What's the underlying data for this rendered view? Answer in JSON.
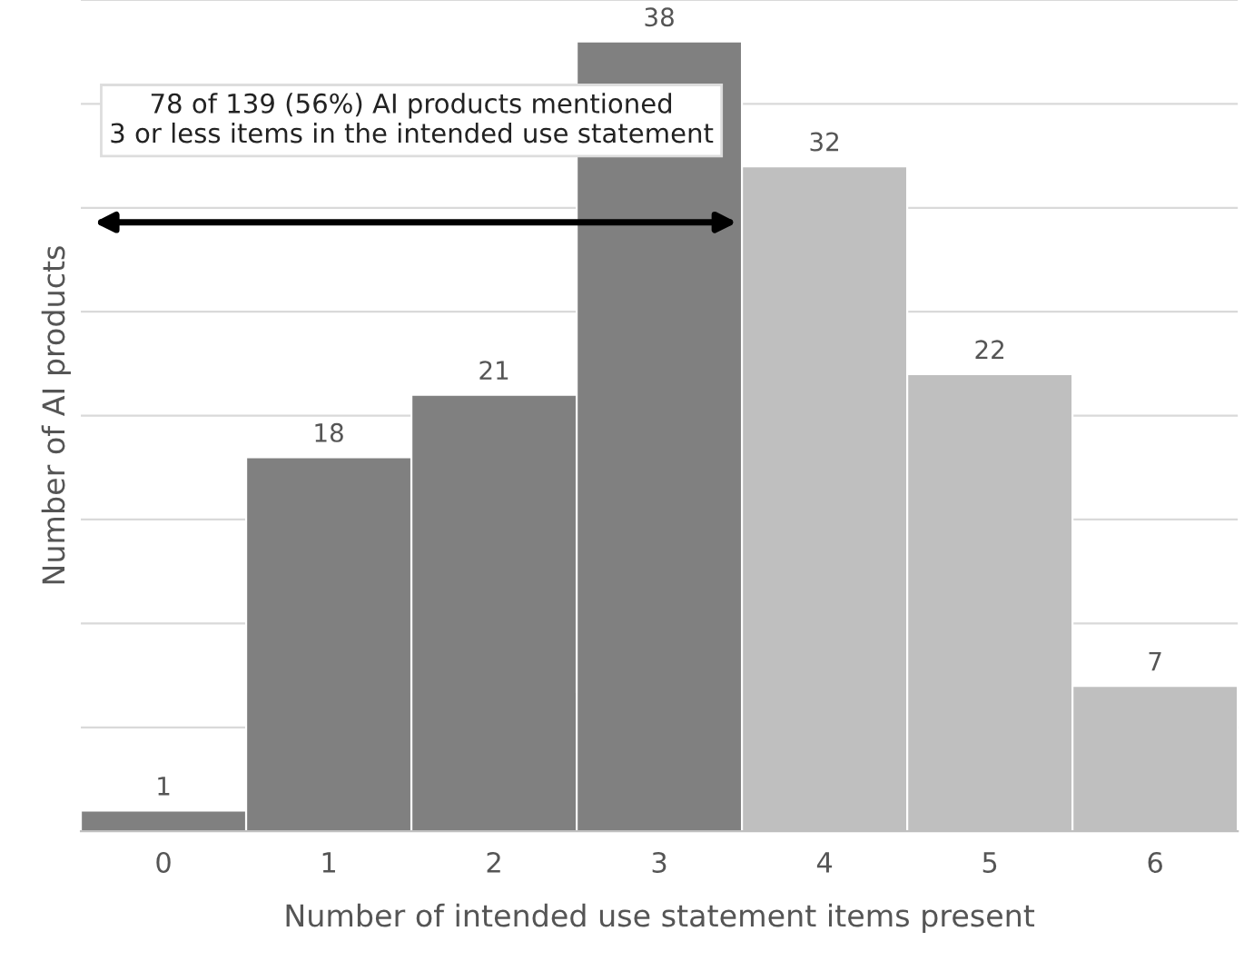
{
  "chart_data": {
    "type": "bar",
    "xlabel": "Number of intended use statement items present",
    "ylabel": "Number of AI products",
    "categories": [
      "0",
      "1",
      "2",
      "3",
      "4",
      "5",
      "6"
    ],
    "values": [
      1,
      18,
      21,
      38,
      32,
      22,
      7
    ],
    "colors": [
      "#808080",
      "#808080",
      "#808080",
      "#808080",
      "#bfbfbf",
      "#bfbfbf",
      "#bfbfbf"
    ],
    "data_labels": true,
    "ylim": [
      0,
      40
    ],
    "yticks": [
      {
        "value": 0,
        "label": null
      },
      {
        "value": 5,
        "label": null
      },
      {
        "value": 10,
        "label": null
      },
      {
        "value": 15,
        "label": null
      },
      {
        "value": 20,
        "label": null
      },
      {
        "value": 25,
        "label": null
      },
      {
        "value": 30,
        "label": null
      },
      {
        "value": 35,
        "label": null
      },
      {
        "value": 40,
        "label": null
      }
    ],
    "grid": "y",
    "tick_labels": "x",
    "annotations": [
      "78 of 139 (56%) AI products mentioned\n3 or less items in the intended use statement"
    ]
  }
}
